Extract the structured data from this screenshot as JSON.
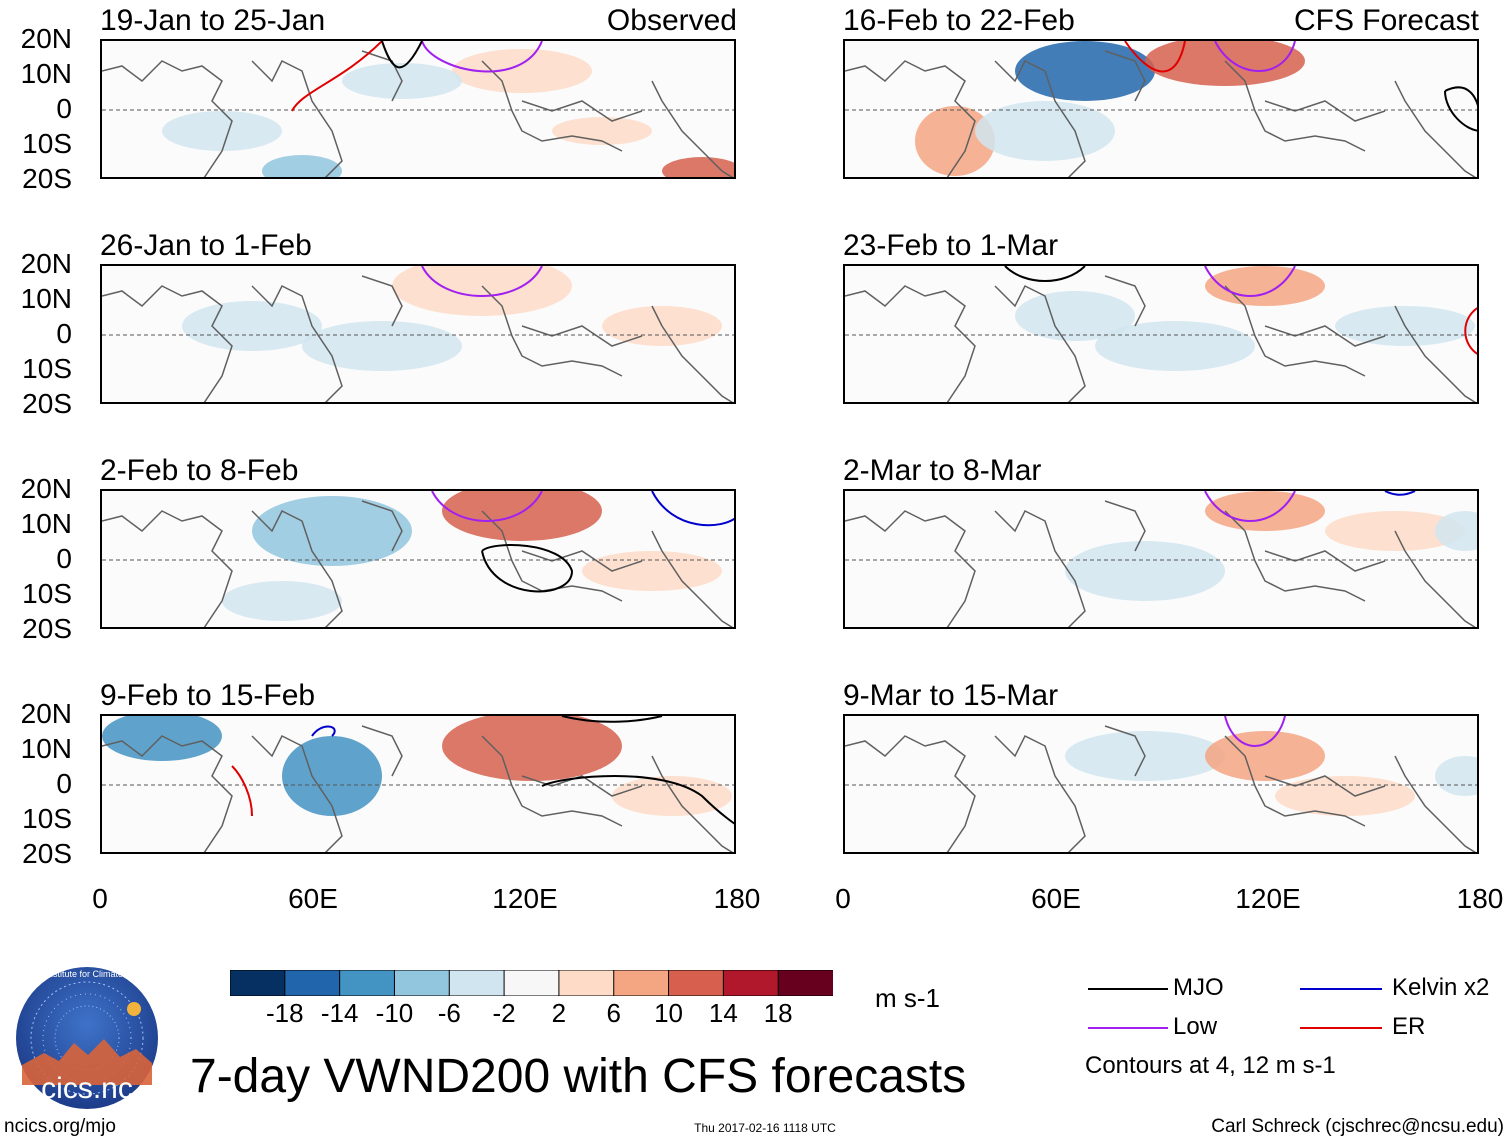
{
  "title": "7-day VWND200 with CFS forecasts",
  "footer": {
    "left": "ncics.org/mjo",
    "center": "Thu 2017-02-16 1118 UTC",
    "right": "Carl Schreck (cjschrec@ncsu.edu)"
  },
  "logo": {
    "text": "cics.nc",
    "ring_text": "Cooperative Institute for Climate and Satellites"
  },
  "left_column": {
    "tag": "Observed",
    "panels": [
      {
        "label": "19-Jan to 25-Jan"
      },
      {
        "label": "26-Jan to 1-Feb"
      },
      {
        "label": "2-Feb to 8-Feb"
      },
      {
        "label": "9-Feb to 15-Feb"
      }
    ]
  },
  "right_column": {
    "tag": "CFS Forecast",
    "panels": [
      {
        "label": "16-Feb to 22-Feb"
      },
      {
        "label": "23-Feb to 1-Mar"
      },
      {
        "label": "2-Mar to 8-Mar"
      },
      {
        "label": "9-Mar to 15-Mar"
      }
    ]
  },
  "lat_labels": [
    "20N",
    "10N",
    "0",
    "10S",
    "20S"
  ],
  "lon_labels": [
    "0",
    "60E",
    "120E",
    "180"
  ],
  "colorbar": {
    "unit": "m s-1",
    "ticks": [
      "-18",
      "-14",
      "-10",
      "-6",
      "-2",
      "2",
      "6",
      "10",
      "14",
      "18"
    ],
    "colors": [
      "#053061",
      "#2166ac",
      "#4393c3",
      "#92c5de",
      "#d1e5f0",
      "#f7f7f7",
      "#fddbc7",
      "#f4a582",
      "#d6604d",
      "#b2182b",
      "#67001f"
    ]
  },
  "legend": {
    "items": [
      {
        "label": "MJO",
        "color": "#000000"
      },
      {
        "label": "Kelvin x2",
        "color": "#0000cc"
      },
      {
        "label": "Low",
        "color": "#a020f0"
      },
      {
        "label": "ER",
        "color": "#e00000"
      }
    ],
    "note": "Contours at 4, 12 m s-1"
  }
}
